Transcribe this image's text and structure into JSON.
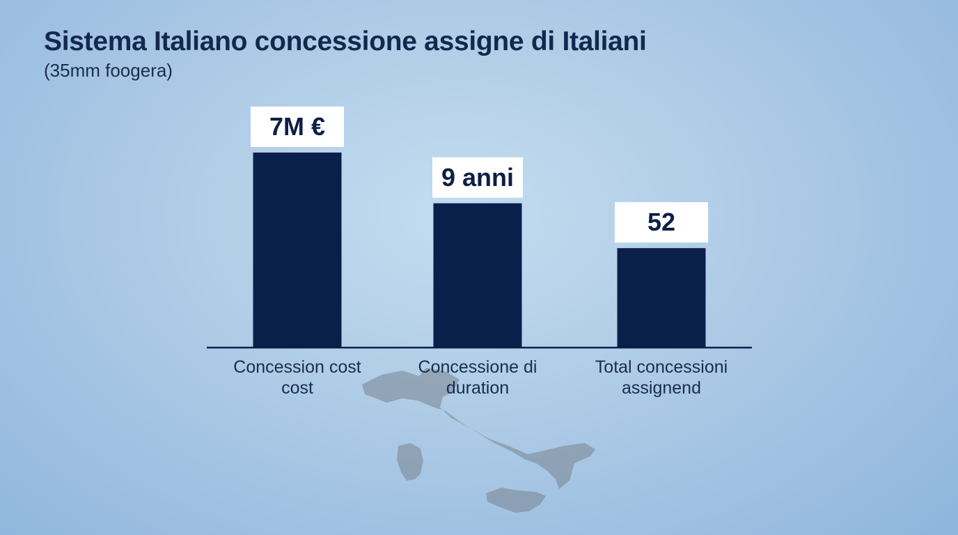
{
  "title": "Sistema Italiano concessione assigne di Italiani",
  "subtitle": "(35mm foogera)",
  "colors": {
    "bar": "#0b1f4b",
    "label_box": "#ffffff",
    "text_dark": "#13284f",
    "map": "#7f8a96"
  },
  "chart_data": {
    "type": "bar",
    "title": "Sistema Italiano concessione assigne di Italiani",
    "subtitle": "(35mm foogera)",
    "categories": [
      [
        "Concession cost",
        "cost"
      ],
      [
        "Concessione di",
        "duration"
      ],
      [
        "Total concessioni",
        "assignend"
      ]
    ],
    "values": [
      7,
      9,
      52
    ],
    "value_labels": [
      "7M €",
      "9 anni",
      "52"
    ],
    "relative_heights": [
      1.0,
      0.74,
      0.51
    ],
    "grid": false,
    "axis": "baseline only",
    "background_image": "map-of-italy"
  }
}
